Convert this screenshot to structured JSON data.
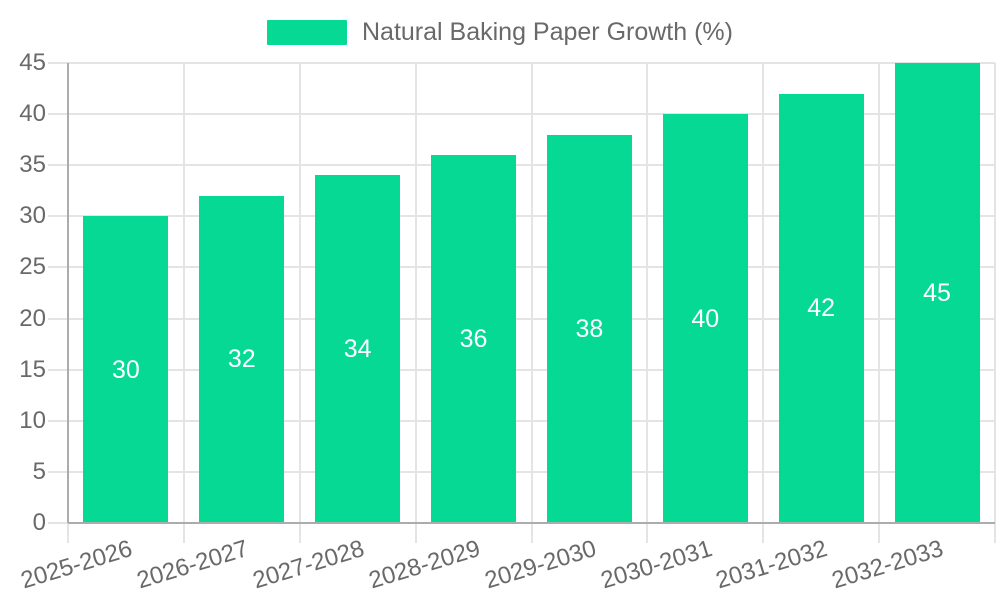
{
  "chart_data": {
    "type": "bar",
    "title": "",
    "legend_position": "top-center",
    "legend_entries": [
      "Natural Baking Paper Growth (%)"
    ],
    "categories": [
      "2025-2026",
      "2026-2027",
      "2027-2028",
      "2028-2029",
      "2029-2030",
      "2030-2031",
      "2031-2032",
      "2032-2033"
    ],
    "series": [
      {
        "name": "Natural Baking Paper Growth (%)",
        "values": [
          30,
          32,
          34,
          36,
          38,
          40,
          42,
          45
        ]
      }
    ],
    "xlabel": "",
    "ylabel": "",
    "ylim": [
      0,
      45
    ],
    "yticks": [
      0,
      5,
      10,
      15,
      20,
      25,
      30,
      35,
      40,
      45
    ],
    "grid": true,
    "value_labels": "inside-center"
  },
  "legend": {
    "label": "Natural Baking Paper Growth (%)"
  },
  "colors": {
    "bar": "#05D993",
    "grid": "#E4E4E4",
    "axis": "#ACACAC",
    "text": "#696969",
    "value_label": "#FFFFFF",
    "background": "#FFFFFF"
  }
}
